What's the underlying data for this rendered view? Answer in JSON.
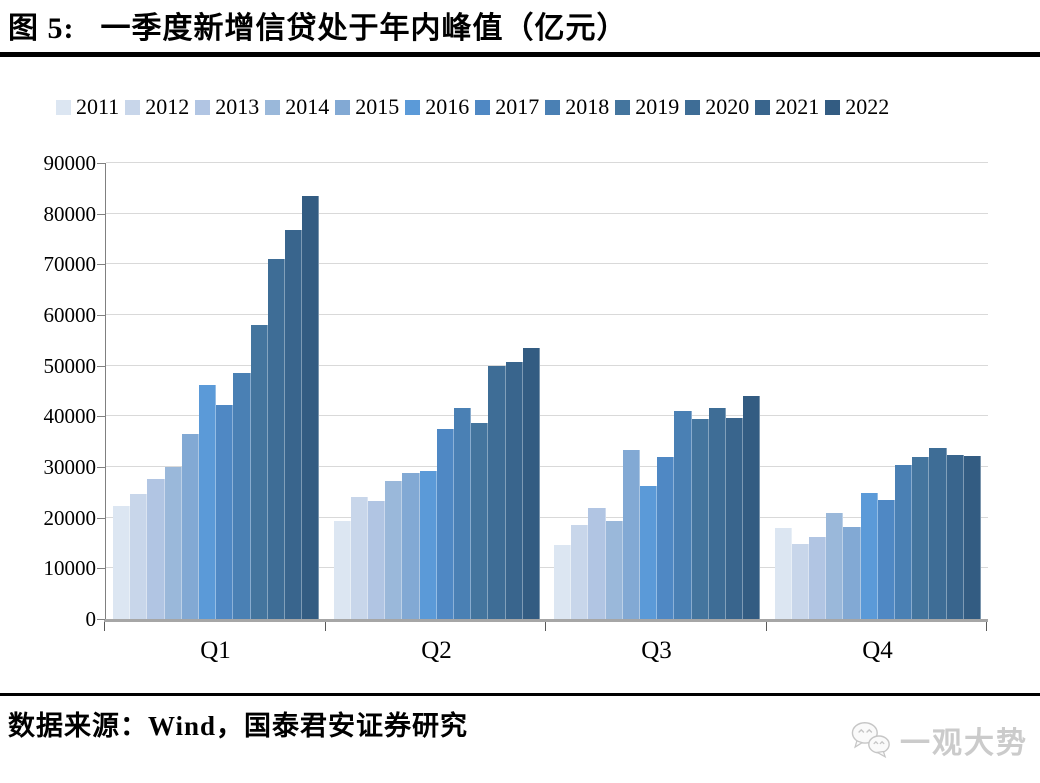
{
  "header": {
    "figure_label": "图 5:",
    "title": "一季度新增信贷处于年内峰值（亿元）"
  },
  "footer": {
    "source": "数据来源：Wind，国泰君安证券研究",
    "watermark": "一观大势",
    "watermark_icon": "wechat-chat-bubbles-icon"
  },
  "chart_data": {
    "type": "bar",
    "title": "一季度新增信贷处于年内峰值（亿元）",
    "categories": [
      "Q1",
      "Q2",
      "Q3",
      "Q4"
    ],
    "series": [
      {
        "name": "2011",
        "color": "#dce6f2",
        "values": [
          22400,
          19300,
          14700,
          17900
        ]
      },
      {
        "name": "2012",
        "color": "#c8d6ea",
        "values": [
          24600,
          24000,
          18500,
          14800
        ]
      },
      {
        "name": "2013",
        "color": "#b1c5e3",
        "values": [
          27600,
          23200,
          22000,
          16100
        ]
      },
      {
        "name": "2014",
        "color": "#9ab8da",
        "values": [
          30100,
          27300,
          19400,
          20900
        ]
      },
      {
        "name": "2015",
        "color": "#82a9d4",
        "values": [
          36600,
          28900,
          33400,
          18200
        ]
      },
      {
        "name": "2016",
        "color": "#5b9ad8",
        "values": [
          46100,
          29200,
          26300,
          24800
        ]
      },
      {
        "name": "2017",
        "color": "#4f88c4",
        "values": [
          42200,
          37500,
          31900,
          23500
        ]
      },
      {
        "name": "2018",
        "color": "#4a80b4",
        "values": [
          48600,
          41700,
          41100,
          30300
        ]
      },
      {
        "name": "2019",
        "color": "#44759e",
        "values": [
          58100,
          38600,
          39500,
          31900
        ]
      },
      {
        "name": "2020",
        "color": "#3e6d96",
        "values": [
          71000,
          49900,
          41700,
          33700
        ]
      },
      {
        "name": "2021",
        "color": "#39658d",
        "values": [
          76700,
          50800,
          39600,
          32400
        ]
      },
      {
        "name": "2022",
        "color": "#335c82",
        "values": [
          83400,
          53400,
          44000,
          32200
        ]
      }
    ],
    "xlabel": "",
    "ylabel": "",
    "ylim": [
      0,
      90000
    ],
    "yticks": [
      0,
      10000,
      20000,
      30000,
      40000,
      50000,
      60000,
      70000,
      80000,
      90000
    ],
    "ytick_labels": [
      "0",
      "10000",
      "20000",
      "30000",
      "40000",
      "50000",
      "60000",
      "70000",
      "80000",
      "90000"
    ],
    "grid": true,
    "legend_position": "top",
    "style": {
      "gridline_color": "#d9d9d9",
      "axis_color": "#808080",
      "baseline_color": "#a6a6a6"
    }
  }
}
